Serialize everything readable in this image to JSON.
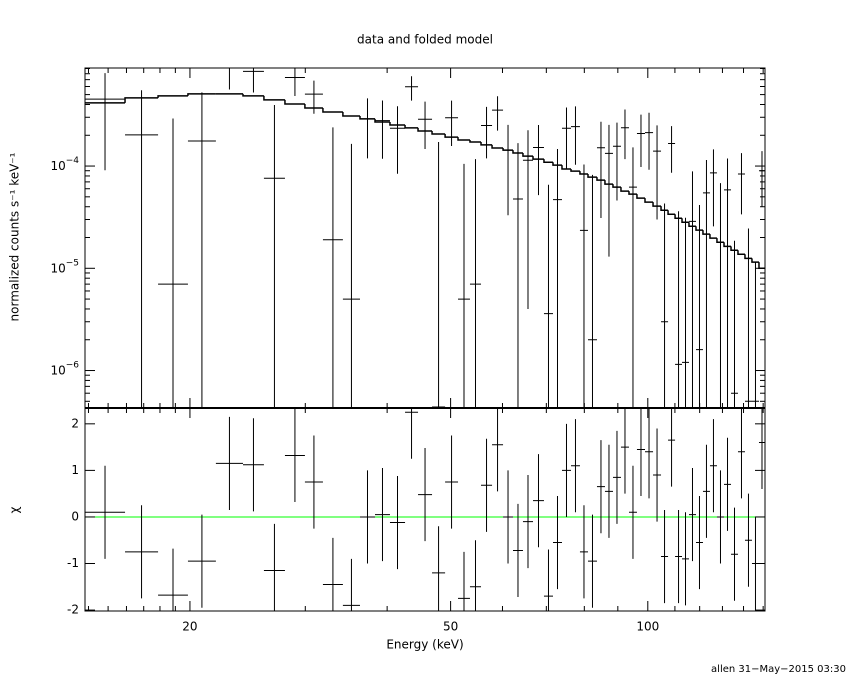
{
  "chart_data": {
    "type": "xspec",
    "title": "data and folded model",
    "x_label": "Energy (keV)",
    "footer": "allen 31−May−2015 03:30",
    "log_x": true,
    "xlim": [
      13.83,
      150.98
    ],
    "xticks": [
      20,
      50,
      100
    ],
    "xminorticks": [
      14,
      15,
      16,
      17,
      18,
      19,
      30,
      40,
      60,
      70,
      80,
      90,
      110,
      120,
      130,
      140,
      150
    ],
    "bins": [
      13.83,
      15.92,
      17.88,
      19.86,
      21.91,
      24.1,
      25.94,
      27.93,
      29.96,
      31.92,
      34.24,
      36.36,
      38.33,
      40.4,
      42.6,
      44.59,
      46.84,
      49.04,
      51.32,
      53.52,
      55.64,
      57.84,
      60.12,
      62.26,
      64.48,
      66.8,
      69.42,
      71.66,
      73.96,
      76.34,
      78.78,
      81.04,
      83.64,
      86.02,
      88.48,
      91.0,
      93.6,
      96.26,
      99.02,
      101.86,
      104.76,
      107.38,
      110.06,
      112.78,
      115.58,
      118.46,
      121.4,
      124.42,
      127.52,
      130.72,
      133.98,
      137.3,
      140.72,
      144.22,
      147.82,
      150.98
    ],
    "top": {
      "y_label": "normalized counts s⁻¹ keV⁻¹",
      "log_y": true,
      "ylim": [
        4.3e-07,
        0.00091
      ],
      "yticks": [
        {
          "value": 1e-06,
          "label": "10−6"
        },
        {
          "value": 1e-05,
          "label": "10−5"
        },
        {
          "value": 0.0001,
          "label": "10−4"
        }
      ],
      "yminorticks": [
        5e-07,
        6e-07,
        7e-07,
        8e-07,
        9e-07,
        2e-06,
        3e-06,
        4e-06,
        5e-06,
        6e-06,
        7e-06,
        8e-06,
        9e-06,
        2e-05,
        3e-05,
        4e-05,
        5e-05,
        6e-05,
        7e-05,
        8e-05,
        9e-05,
        0.0002,
        0.0003,
        0.0004,
        0.0005,
        0.0006,
        0.0007,
        0.0008,
        0.0009
      ],
      "data_color": "#000000",
      "model_color": "#000000",
      "data": [
        0.000451,
        0.000202,
        7e-06,
        0.000176,
        0.00091,
        0.000844,
        7.6e-05,
        0.000735,
        0.000505,
        1.9e-05,
        5e-06,
        0.000289,
        0.000278,
        0.000234,
        0.000596,
        0.000287,
        4.4e-07,
        0.000297,
        5e-06,
        7e-06,
        0.000249,
        0.000352,
        0.000143,
        4.76e-05,
        0.000114,
        0.000152,
        3.6e-06,
        4.7e-05,
        0.000234,
        0.000243,
        2.35e-05,
        2e-06,
        0.000151,
        0.000133,
        0.000156,
        0.000237,
        6.22e-05,
        0.000208,
        0.000212,
        0.00014,
        3e-06,
        0.000166,
        1.15e-06,
        1.2e-06,
        2.88e-05,
        1.6e-06,
        5.46e-05,
        8.57e-05,
        1.8e-05,
        5.84e-05,
        6e-07,
        8.37e-05,
        5e-07,
        5e-07,
        9e-05
      ],
      "errors": [
        0.00036,
        0.00035,
        0.000285,
        0.00035,
        0.00035,
        0.00032,
        0.00032,
        0.00025,
        0.00018,
        0.00022,
        0.00016,
        0.00017,
        0.00016,
        0.00015,
        0.00016,
        0.00014,
        0.0001713,
        0.00014,
        0.0001,
        0.00011,
        0.00013,
        0.00013,
        0.00011,
        0.00012,
        0.00011,
        0.0001,
        6.2e-05,
        0.0001,
        0.00014,
        0.00014,
        8e-05,
        8e-05,
        0.00012,
        0.00012,
        0.00011,
        0.00012,
        9e-05,
        0.00011,
        0.00012,
        0.00011,
        4e-05,
        8e-05,
        3.5e-05,
        3e-05,
        6e-05,
        4e-05,
        6e-05,
        6e-05,
        5e-05,
        6e-05,
        1.8e-05,
        5e-05,
        2.4e-05,
        1.1e-05,
        5e-05
      ],
      "model": [
        0.000415,
        0.000464,
        0.000486,
        0.000508,
        0.000508,
        0.000486,
        0.000444,
        0.000405,
        0.00037,
        0.000338,
        0.000309,
        0.000289,
        0.00027,
        0.000252,
        0.000236,
        0.00022,
        0.000206,
        0.000192,
        0.00018,
        0.000172,
        0.000161,
        0.00015,
        0.000143,
        0.000134,
        0.000125,
        0.000117,
        0.000109,
        0.000102,
        9.35e-05,
        8.93e-05,
        8.35e-05,
        7.8e-05,
        7.29e-05,
        6.66e-05,
        6.22e-05,
        5.69e-05,
        5.32e-05,
        4.86e-05,
        4.44e-05,
        4.05e-05,
        3.7e-05,
        3.38e-05,
        3.09e-05,
        2.82e-05,
        2.58e-05,
        2.36e-05,
        2.16e-05,
        1.97e-05,
        1.8e-05,
        1.64e-05,
        1.5e-05,
        1.37e-05,
        1.25e-05,
        1.15e-05,
        1e-05
      ]
    },
    "bottom": {
      "y_label": "χ",
      "ylim": [
        -2.02,
        2.34
      ],
      "yticks": [
        -2,
        -1,
        0,
        1,
        2
      ],
      "chi_color": "#000000",
      "chi": [
        0.1,
        -0.75,
        -1.68,
        -0.95,
        1.15,
        1.12,
        -1.15,
        1.32,
        0.75,
        -1.45,
        -1.9,
        0.0,
        0.05,
        -0.12,
        2.25,
        0.48,
        -1.2,
        0.75,
        -1.75,
        -1.5,
        0.68,
        1.55,
        0.0,
        -0.72,
        -0.1,
        0.35,
        -1.7,
        -0.55,
        1.0,
        1.1,
        -0.75,
        -0.95,
        0.65,
        0.55,
        0.85,
        1.5,
        0.1,
        1.45,
        1.4,
        0.9,
        -0.85,
        1.65,
        -0.85,
        -0.9,
        0.05,
        -0.55,
        0.55,
        1.1,
        0.0,
        0.7,
        -0.8,
        1.4,
        -0.5,
        -1.0,
        1.6
      ],
      "chi_errors": [
        1,
        1,
        1,
        1,
        1,
        1,
        1,
        1,
        1,
        1,
        1,
        1,
        1,
        1,
        1,
        1,
        1,
        1,
        1,
        1,
        1,
        1,
        1,
        1,
        1,
        1,
        1,
        1,
        1,
        1,
        1,
        1,
        1,
        1,
        1,
        1,
        1,
        1,
        1,
        1,
        1,
        1,
        1,
        1,
        1,
        1,
        1,
        1,
        1,
        1,
        1,
        1,
        1,
        1,
        1
      ],
      "zero_line": {
        "value": 0,
        "color": "#00ff00"
      }
    }
  }
}
